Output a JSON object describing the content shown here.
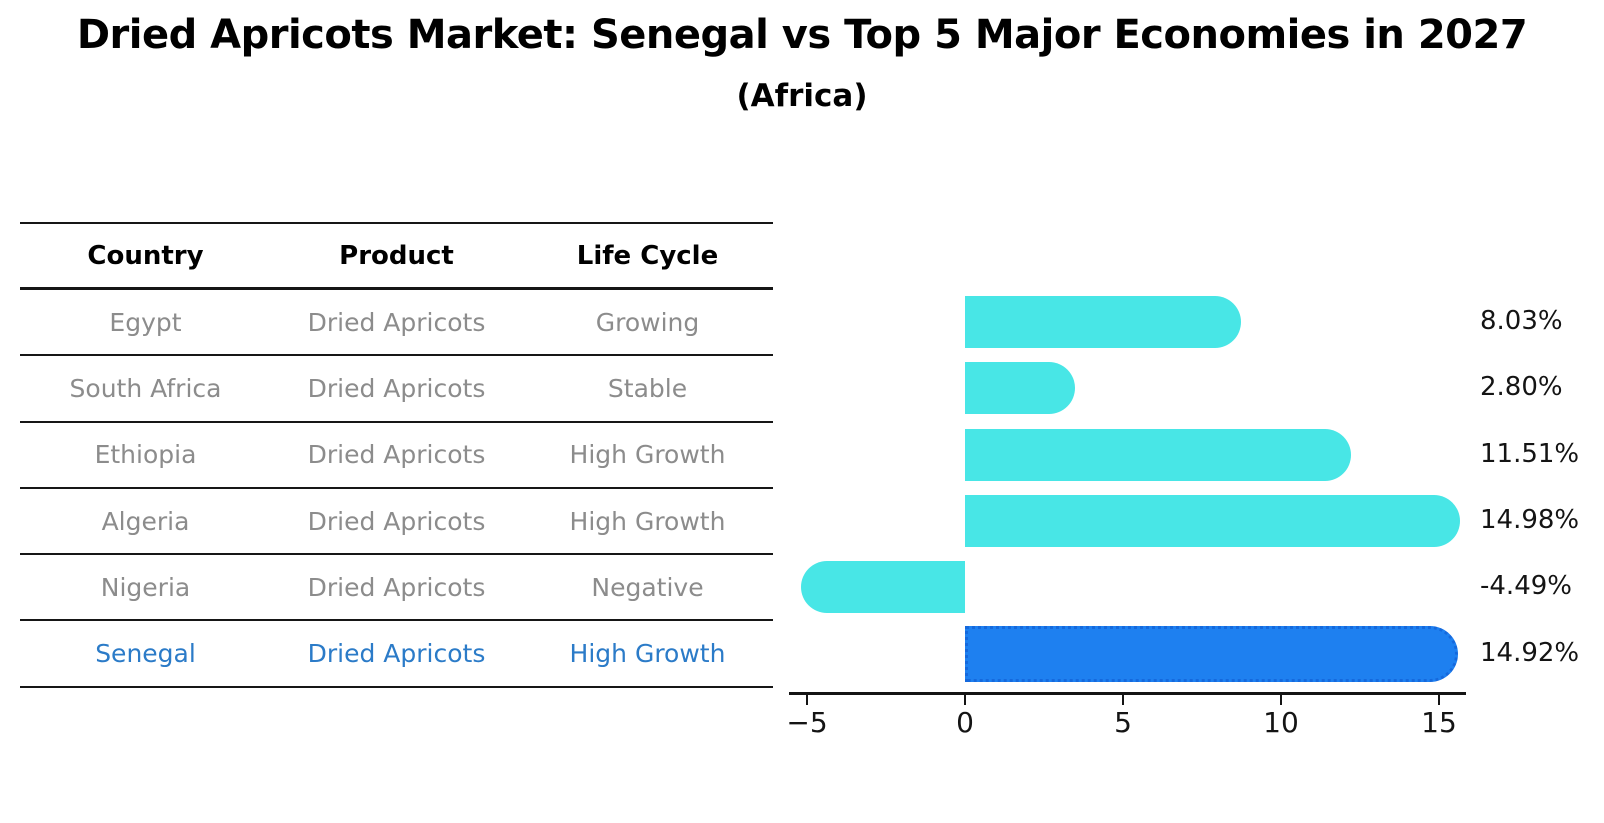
{
  "title": "Dried Apricots Market: Senegal vs Top 5 Major Economies in 2027",
  "subtitle": "(Africa)",
  "table": {
    "headers": [
      "Country",
      "Product",
      "Life Cycle"
    ],
    "rows": [
      {
        "country": "Egypt",
        "product": "Dried Apricots",
        "life_cycle": "Growing",
        "highlight": false
      },
      {
        "country": "South Africa",
        "product": "Dried Apricots",
        "life_cycle": "Stable",
        "highlight": false
      },
      {
        "country": "Ethiopia",
        "product": "Dried Apricots",
        "life_cycle": "High Growth",
        "highlight": false
      },
      {
        "country": "Algeria",
        "product": "Dried Apricots",
        "life_cycle": "High Growth",
        "highlight": false
      },
      {
        "country": "Nigeria",
        "product": "Dried Apricots",
        "life_cycle": "Negative",
        "highlight": false
      },
      {
        "country": "Senegal",
        "product": "Dried Apricots",
        "life_cycle": "High Growth",
        "highlight": true
      }
    ]
  },
  "chart_data": {
    "type": "bar",
    "orientation": "horizontal",
    "categories": [
      "Egypt",
      "South Africa",
      "Ethiopia",
      "Algeria",
      "Nigeria",
      "Senegal"
    ],
    "values": [
      8.03,
      2.8,
      11.51,
      14.98,
      -4.49,
      14.92
    ],
    "value_labels": [
      "8.03%",
      "2.80%",
      "11.51%",
      "14.98%",
      "-4.49%",
      "14.92%"
    ],
    "x_ticks": [
      -5,
      0,
      5,
      10,
      15
    ],
    "x_tick_labels": [
      "−5",
      "0",
      "5",
      "10",
      "15"
    ],
    "xlim": [
      -5.5,
      15.8
    ],
    "grid": false,
    "legend": "none",
    "highlight_index": 5,
    "bar_color": "#48e6e6",
    "highlight_bar_color": "#1e80f0",
    "highlight_border_color": "#1569dd",
    "highlight_text_color": "#2b7bc8",
    "row_text_color": "#8c8c8c",
    "axis_color": "#141414"
  }
}
